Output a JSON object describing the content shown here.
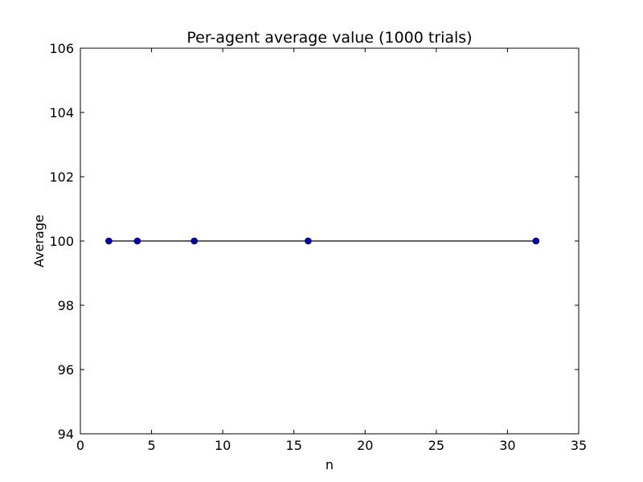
{
  "chart_data": {
    "type": "line",
    "title": "Per-agent average value (1000 trials)",
    "xlabel": "n",
    "ylabel": "Average",
    "xlim": [
      0,
      35
    ],
    "ylim": [
      94,
      106
    ],
    "xticks": [
      "0",
      "5",
      "10",
      "15",
      "20",
      "25",
      "30",
      "35"
    ],
    "yticks": [
      "94",
      "96",
      "98",
      "100",
      "102",
      "104",
      "106"
    ],
    "grid": false,
    "legend": "none",
    "series": [
      {
        "x": [
          2,
          4,
          8,
          16,
          32
        ],
        "y": [
          100,
          100,
          100,
          100,
          100
        ],
        "line_color": "#000000",
        "marker_color": "#0000bf",
        "marker": "circle"
      }
    ]
  }
}
